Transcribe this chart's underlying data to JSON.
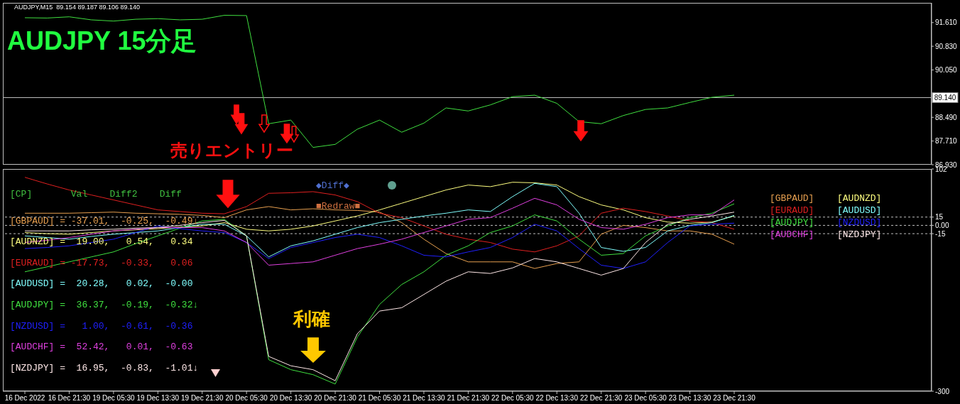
{
  "chart_data": [
    {
      "type": "line",
      "title": "AUDJPY 15分足",
      "subtitle": "AUDJPY,M15  89.154 89.187 89.106 89.140",
      "annotations": [
        "売りエントリー"
      ],
      "tick_labels": "y",
      "ylim": [
        86.93,
        92.26
      ],
      "yticks": [
        {
          "value": 86.93,
          "label": "86.930"
        },
        {
          "value": 87.71,
          "label": "87.710"
        },
        {
          "value": 88.49,
          "label": "88.490"
        },
        {
          "value": 90.05,
          "label": "90.050"
        },
        {
          "value": 90.83,
          "label": "90.830"
        },
        {
          "value": 91.61,
          "label": "91.610"
        }
      ],
      "categories": [
        null,
        null,
        null,
        null,
        null,
        null,
        null,
        null,
        null,
        null,
        null,
        null,
        null,
        null,
        null,
        null,
        null,
        null,
        null,
        null,
        null,
        null,
        null,
        null,
        null,
        null,
        null,
        null,
        null,
        null,
        null,
        null,
        null
      ],
      "values": [
        91.77,
        91.76,
        91.8,
        91.7,
        91.66,
        91.72,
        91.74,
        91.7,
        91.72,
        91.85,
        91.84,
        88.28,
        88.4,
        87.5,
        87.6,
        88.1,
        88.4,
        88.0,
        88.3,
        88.8,
        88.7,
        88.9,
        89.17,
        89.22,
        88.95,
        88.35,
        88.28,
        88.55,
        88.75,
        88.8,
        88.98,
        89.15,
        89.22
      ],
      "color": "#40e040",
      "ref_lines": [
        {
          "axis": "y",
          "value": 89.14,
          "label": "89.140",
          "color": "#c0c0c0",
          "line_style": "solid"
        }
      ]
    },
    {
      "type": "line",
      "legend": "right",
      "ylim": [
        -300,
        102
      ],
      "yticks": [
        -300,
        -15,
        {
          "value": 0,
          "label": "0.00"
        },
        15,
        102
      ],
      "categories": [
        "16 Dec 2022",
        null,
        "16 Dec 21:30",
        null,
        "19 Dec 05:30",
        null,
        "19 Dec 13:30",
        null,
        "19 Dec 21:30",
        null,
        "20 Dec 05:30",
        null,
        "20 Dec 13:30",
        null,
        "20 Dec 21:30",
        null,
        "21 Dec 05:30",
        null,
        "21 Dec 13:30",
        null,
        "21 Dec 21:30",
        null,
        "22 Dec 05:30",
        null,
        "22 Dec 13:30",
        null,
        "22 Dec 21:30",
        null,
        "23 Dec 05:30",
        null,
        "23 Dec 13:30",
        null,
        "23 Dec 21:30"
      ],
      "annotations": [
        "[CP]       Val    Diff2    Diff",
        "[GBPAUD] = -37.01,  -0.25,  -0.49↓",
        "[AUDNZD] =  19.00,   0.54,   0.34",
        "[EURAUD] = -17.73,  -0.33,   0.06",
        "[AUDUSD] =  20.28,   0.02,  -0.00",
        "[AUDJPY] =  36.37,  -0.19,  -0.32↓",
        "[NZDUSD] =   1.00,  -0.61,  -0.36",
        "[AUDCHF] =  52.42,   0.01,  -0.63",
        "[NZDJPY] =  16.95,  -0.83,  -1.01↓",
        "◆Diff◆",
        "■Redraw■",
        "利確"
      ],
      "series": [
        {
          "name": "[GBPAUD]",
          "color": "#e8a050",
          "values": [
            22,
            22,
            22,
            23,
            24,
            22,
            21,
            20,
            18,
            14,
            28,
            34,
            28,
            30,
            28,
            27,
            24,
            5,
            -25,
            -51,
            -66,
            -66,
            -66,
            -78,
            -69,
            -66,
            -16,
            0,
            -4,
            -10,
            -10,
            -16,
            -34
          ]
        },
        {
          "name": "[AUDNZD]",
          "color": "#ffff80",
          "values": [
            -13,
            -15,
            -16,
            -13,
            -10,
            -8,
            -6,
            -3,
            -1,
            5,
            -7,
            -10,
            -7,
            -1,
            8,
            17,
            28,
            40,
            52,
            64,
            73,
            70,
            78,
            77,
            73,
            52,
            37,
            28,
            14,
            6,
            4,
            6,
            17
          ]
        },
        {
          "name": "[EURAUD]",
          "color": "#e02020",
          "values": [
            87,
            75,
            64,
            55,
            46,
            37,
            28,
            25,
            22,
            21,
            34,
            58,
            59,
            61,
            55,
            43,
            22,
            14,
            -1,
            -16,
            -25,
            -31,
            -43,
            -48,
            -37,
            -19,
            22,
            31,
            25,
            17,
            8,
            5,
            -7
          ]
        },
        {
          "name": "[AUDUSD]",
          "color": "#80ffff",
          "values": [
            -19,
            -22,
            -25,
            -20,
            -16,
            -13,
            -10,
            -4,
            2,
            2,
            -19,
            -57,
            -37,
            -28,
            -16,
            -4,
            5,
            11,
            17,
            22,
            28,
            25,
            52,
            76,
            70,
            22,
            -40,
            -47,
            -40,
            -10,
            0,
            5,
            18
          ]
        },
        {
          "name": "[AUDJPY]",
          "color": "#40e040",
          "values": [
            -84,
            -75,
            -66,
            -57,
            -48,
            -33,
            -19,
            -5,
            8,
            11,
            -19,
            -243,
            -261,
            -270,
            -287,
            -202,
            -143,
            -107,
            -84,
            -54,
            -37,
            -13,
            -1,
            19,
            8,
            -25,
            -54,
            -51,
            -19,
            -1,
            14,
            22,
            39
          ]
        },
        {
          "name": "[NZDUSD]",
          "color": "#2020ff",
          "values": [
            -42,
            -40,
            -37,
            -31,
            -25,
            -13,
            -1,
            -6,
            -10,
            -13,
            -31,
            -60,
            -40,
            -31,
            -22,
            -16,
            -22,
            -37,
            -54,
            -57,
            -48,
            -40,
            -22,
            2,
            -10,
            -42,
            -72,
            -78,
            -66,
            -31,
            -1,
            2,
            4
          ]
        },
        {
          "name": "[AUDCHF]",
          "color": "#e040e0",
          "values": [
            -31,
            -27,
            -22,
            -16,
            -10,
            -7,
            -4,
            -4,
            -4,
            -10,
            -31,
            -72,
            -69,
            -66,
            -54,
            -42,
            -34,
            -25,
            -13,
            -1,
            11,
            14,
            31,
            49,
            37,
            11,
            -4,
            -7,
            2,
            14,
            19,
            19,
            46
          ]
        },
        {
          "name": "[NZDJPY]",
          "color": "#ffe8e8",
          "values": [
            -10,
            -10,
            -10,
            -8,
            -7,
            -5,
            -4,
            0,
            5,
            9,
            -19,
            -237,
            -254,
            -261,
            -281,
            -196,
            -155,
            -149,
            -125,
            -101,
            -84,
            -87,
            -77,
            -60,
            -66,
            -78,
            -90,
            -78,
            -31,
            2,
            11,
            17,
            24
          ]
        }
      ],
      "ref_lines": [
        {
          "axis": "y",
          "value": 15,
          "color": "#c0c0c0",
          "line_style": "dashed"
        },
        {
          "axis": "y",
          "value": 0,
          "color": "#c0c0c0",
          "line_style": "dashed"
        },
        {
          "axis": "y",
          "value": -15,
          "color": "#c0c0c0",
          "line_style": "dashed"
        }
      ]
    }
  ]
}
